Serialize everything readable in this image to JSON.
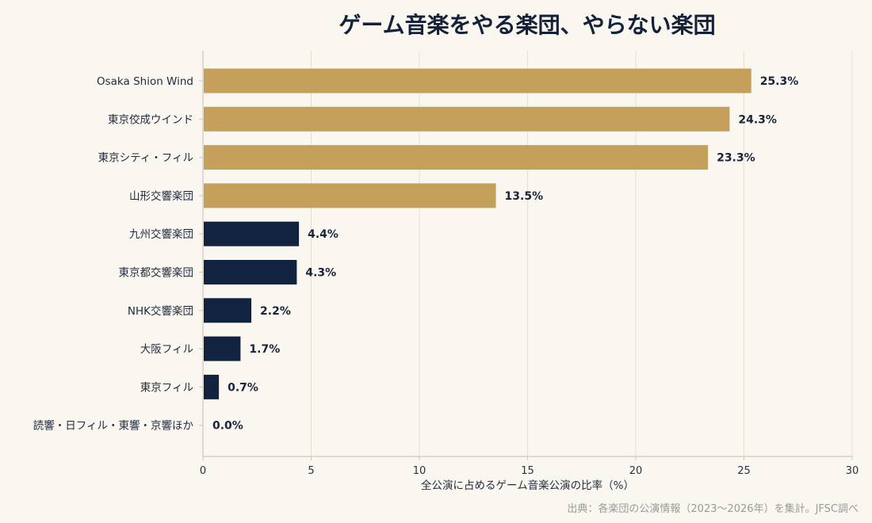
{
  "chart_data": {
    "type": "bar",
    "orientation": "horizontal",
    "title": "ゲーム音楽をやる楽団、やらない楽団",
    "xlabel": "全公演に占めるゲーム音楽公演の比率（%）",
    "ylabel": "",
    "xlim": [
      0,
      30
    ],
    "xticks": [
      0,
      5,
      10,
      15,
      20,
      25,
      30
    ],
    "grid": "vertical",
    "categories": [
      "Osaka Shion Wind",
      "東京佼成ウインド",
      "東京シティ・フィル",
      "山形交響楽団",
      "九州交響楽団",
      "東京都交響楽団",
      "NHK交響楽団",
      "大阪フィル",
      "東京フィル",
      "読響・日フィル・東響・京響ほか"
    ],
    "values": [
      25.3,
      24.3,
      23.3,
      13.5,
      4.4,
      4.3,
      2.2,
      1.7,
      0.7,
      0.0
    ],
    "value_labels": [
      "25.3%",
      "24.3%",
      "23.3%",
      "13.5%",
      "4.4%",
      "4.3%",
      "2.2%",
      "1.7%",
      "0.7%",
      "0.0%"
    ],
    "colors": {
      "high": "#c4a05a",
      "low": "#12233f",
      "grid": "#e6e0d4",
      "axis": "#cfc8bb"
    },
    "high_threshold": 10
  },
  "source_note": "出典：各楽団の公演情報（2023〜2026年）を集計。JFSC調べ"
}
